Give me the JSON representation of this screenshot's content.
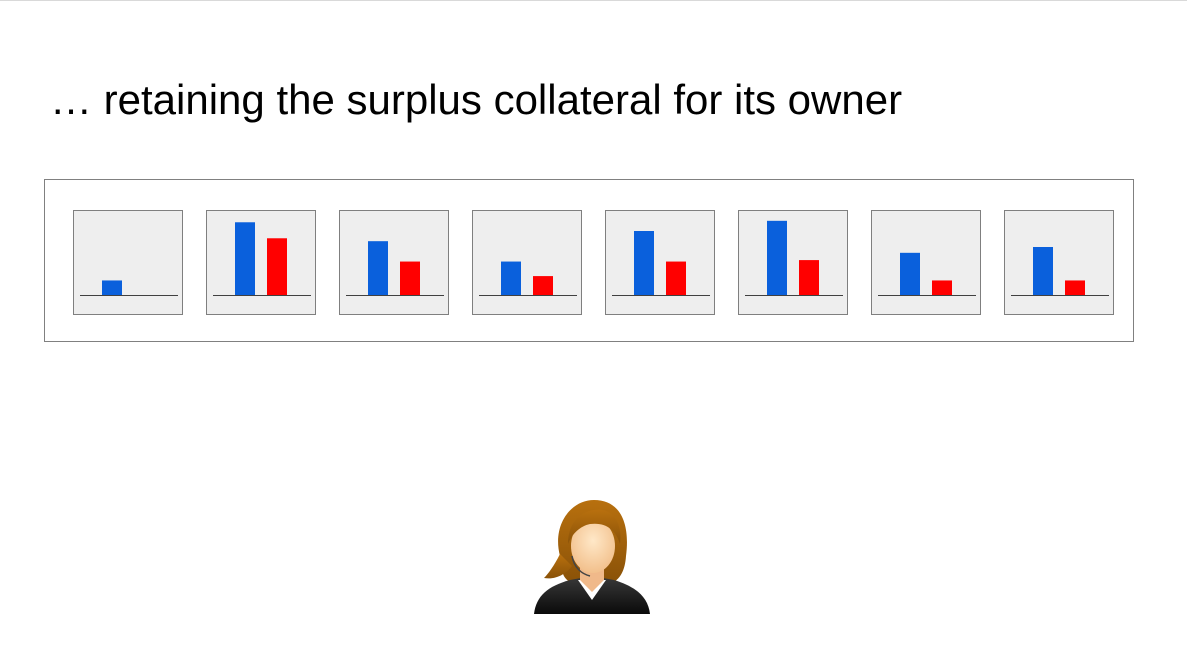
{
  "slide": {
    "title": "… retaining the surplus collateral for its owner"
  },
  "colors": {
    "series_a": "#0a60dc",
    "series_b": "#ff0000",
    "card_fill": "#eeeeee",
    "card_border": "#7f7f7f",
    "baseline": "#404040"
  },
  "chart_data": {
    "type": "bar",
    "panels": 8,
    "series": [
      {
        "values": [
          1,
          5,
          3.7,
          2.3,
          4.4,
          5.1,
          2.9,
          3.3
        ]
      },
      {
        "values": [
          0,
          3.9,
          2.3,
          1.3,
          2.3,
          2.4,
          1.0,
          1.0
        ]
      }
    ],
    "ylim": [
      0,
      5.5
    ],
    "grid": false,
    "legend": "none"
  },
  "icons": {
    "owner": "person-woman-icon"
  }
}
